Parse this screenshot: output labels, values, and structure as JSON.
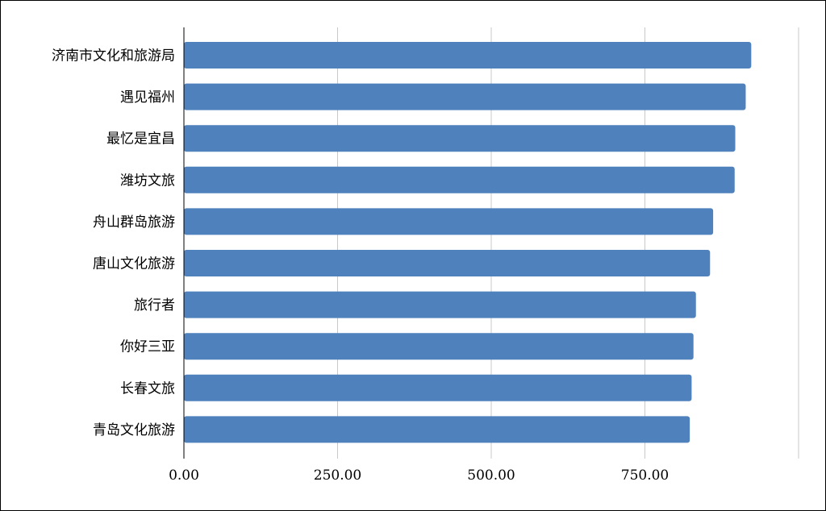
{
  "chart_data": {
    "type": "bar",
    "orientation": "horizontal",
    "title": "",
    "xlabel": "",
    "ylabel": "",
    "categories": [
      "济南市文化和旅游局",
      "遇见福州",
      "最忆是宜昌",
      "潍坊文旅",
      "舟山群岛旅游",
      "唐山文化旅游",
      "旅行者",
      "你好三亚",
      "长春文旅",
      "青岛文化旅游"
    ],
    "values": [
      923,
      914,
      897,
      896,
      861,
      856,
      833,
      829,
      826,
      823
    ],
    "xlim": [
      0,
      1000
    ],
    "xticks": [
      0,
      250,
      500,
      750,
      1000
    ],
    "xtick_labels": [
      "0.00",
      "250.00",
      "500.00",
      "750.00",
      ""
    ],
    "grid": "vertical",
    "bar_color": "#4f81bd",
    "grid_color": "#c8c8c8",
    "axis_color": "#000000"
  }
}
